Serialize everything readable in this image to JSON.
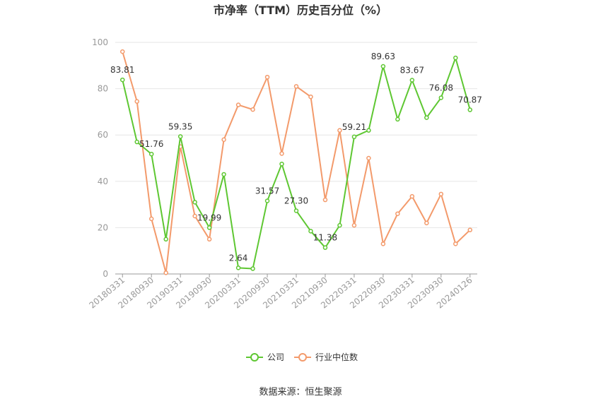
{
  "chart_data": {
    "type": "line",
    "title": "市净率（TTM）历史百分位（%）",
    "xlabel": "",
    "ylabel": "",
    "ylim": [
      0,
      100
    ],
    "yticks": [
      0,
      20,
      40,
      60,
      80,
      100
    ],
    "grid": true,
    "legend_position": "bottom",
    "x": [
      "20180331",
      "20180630",
      "20180930",
      "20181231",
      "20190331",
      "20190630",
      "20190930",
      "20191231",
      "20200331",
      "20200630",
      "20200930",
      "20201231",
      "20210331",
      "20210630",
      "20210930",
      "20211231",
      "20220331",
      "20220630",
      "20220930",
      "20221231",
      "20230331",
      "20230630",
      "20230930",
      "20231231",
      "20240126"
    ],
    "x_tick_labels": [
      "20180331",
      "",
      "20180930",
      "",
      "20190331",
      "",
      "20190930",
      "",
      "20200331",
      "",
      "20200930",
      "",
      "20210331",
      "",
      "20210930",
      "",
      "20220331",
      "",
      "20220930",
      "",
      "20230331",
      "",
      "20230930",
      "",
      "20240126"
    ],
    "series": [
      {
        "name": "公司",
        "color": "#5ec732",
        "values": [
          83.81,
          57.0,
          51.76,
          15.0,
          59.35,
          31.0,
          19.99,
          43.0,
          2.64,
          2.3,
          31.57,
          47.5,
          27.3,
          18.5,
          11.38,
          21.0,
          59.21,
          62.0,
          89.63,
          66.8,
          83.67,
          67.5,
          76.08,
          93.3,
          70.87
        ],
        "labels": [
          "83.81",
          "",
          "51.76",
          "",
          "59.35",
          "",
          "19.99",
          "",
          "2.64",
          "",
          "31.57",
          "",
          "27.30",
          "",
          "11.38",
          "",
          "59.21",
          "",
          "89.63",
          "",
          "83.67",
          "",
          "76.08",
          "",
          "70.87"
        ]
      },
      {
        "name": "行业中位数",
        "color": "#f39a6b",
        "values": [
          96.0,
          74.5,
          23.8,
          0.5,
          55.0,
          25.0,
          15.0,
          58.0,
          73.0,
          71.0,
          85.0,
          52.0,
          81.0,
          76.5,
          32.0,
          62.0,
          21.0,
          50.0,
          13.0,
          26.0,
          33.5,
          22.0,
          34.5,
          13.0,
          19.0
        ]
      }
    ],
    "source_text": "数据来源：恒生聚源"
  }
}
